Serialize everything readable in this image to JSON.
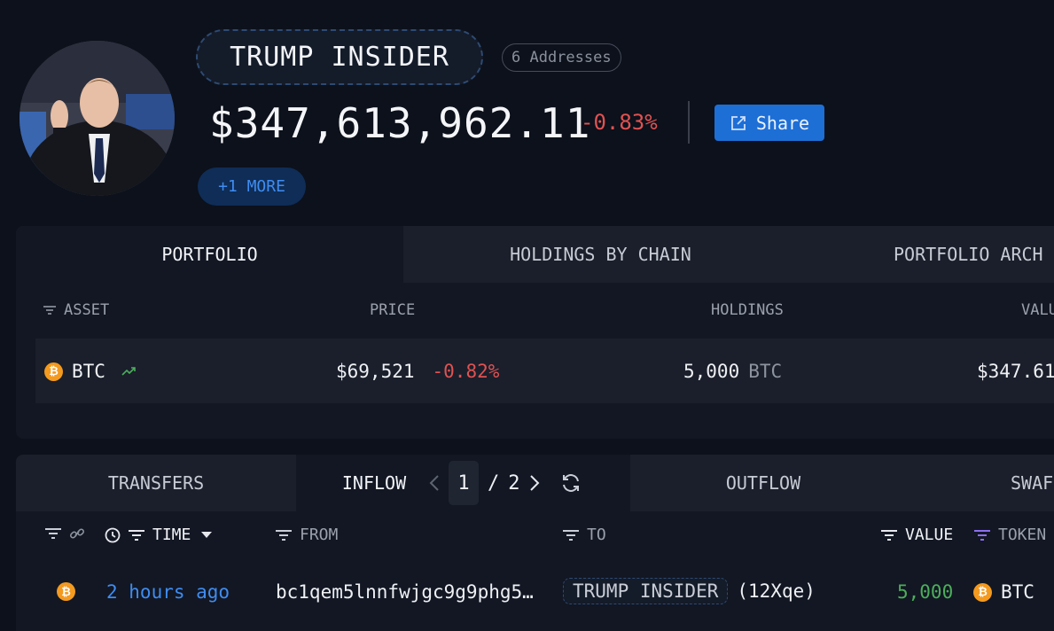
{
  "header": {
    "entity_name": "TRUMP INSIDER",
    "address_count": "6 Addresses",
    "balance": "$347,613,962.11",
    "change": "-0.83%",
    "share_label": "Share",
    "more_label": "+1 MORE"
  },
  "portfolio": {
    "tabs": [
      "PORTFOLIO",
      "HOLDINGS BY CHAIN",
      "PORTFOLIO ARCH"
    ],
    "columns": {
      "asset": "ASSET",
      "price": "PRICE",
      "holdings": "HOLDINGS",
      "value": "VALU"
    },
    "rows": [
      {
        "asset": "BTC",
        "price": "$69,521",
        "price_change": "-0.82%",
        "holdings": "5,000",
        "holdings_unit": "BTC",
        "value": "$347.61"
      }
    ]
  },
  "transfers": {
    "tabs": [
      "TRANSFERS",
      "INFLOW",
      "OUTFLOW",
      "SWAF"
    ],
    "pager": {
      "current": "1",
      "separator": "/",
      "total": "2"
    },
    "columns": {
      "time": "TIME",
      "from": "FROM",
      "to": "TO",
      "value": "VALUE",
      "token": "TOKEN"
    },
    "rows": [
      {
        "time": "2 hours ago",
        "from": "bc1qem5lnnfwjgc9g9phg5…",
        "to_entity": "TRUMP INSIDER",
        "to_suffix": "(12Xqe)",
        "value": "5,000",
        "token": "BTC"
      }
    ]
  },
  "colors": {
    "accent": "#1d6fd6",
    "negative": "#e05252",
    "positive": "#4cae5b",
    "bitcoin": "#f39a1f"
  }
}
